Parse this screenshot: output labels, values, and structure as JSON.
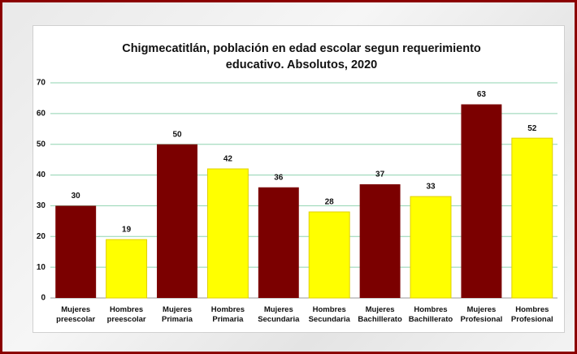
{
  "chart_data": {
    "type": "bar",
    "title": "Chigmecatitlán, población en edad escolar segun requerimiento educativo. Absolutos, 2020",
    "categories": [
      "Mujeres preescolar",
      "Hombres preescolar",
      "Mujeres Primaria",
      "Hombres Primaria",
      "Mujeres Secundaria",
      "Hombres Secundaria",
      "Mujeres Bachillerato",
      "Hombres Bachillerato",
      "Mujeres Profesional",
      "Hombres Profesional"
    ],
    "values": [
      30,
      19,
      50,
      42,
      36,
      28,
      37,
      33,
      63,
      52
    ],
    "colors": [
      "#7b0000",
      "#ffff00",
      "#7b0000",
      "#ffff00",
      "#7b0000",
      "#ffff00",
      "#7b0000",
      "#ffff00",
      "#7b0000",
      "#ffff00"
    ],
    "ylim": [
      0,
      70
    ],
    "yticks": [
      0,
      10,
      20,
      30,
      40,
      50,
      60,
      70
    ],
    "grid": true
  }
}
